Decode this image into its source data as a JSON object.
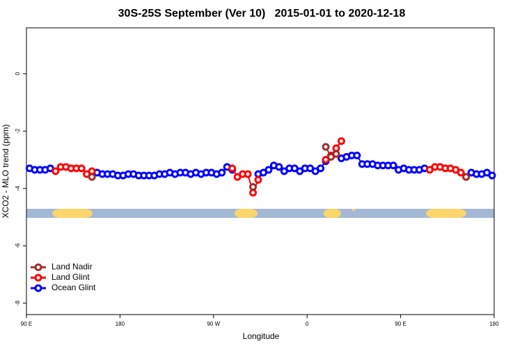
{
  "chart_data": {
    "type": "line",
    "title": "30S-25S September (Ver 10)   2015-01-01 to 2020-12-18",
    "x_label": "Longitude",
    "y_label": "XCO2 - MLO trend (ppm)",
    "xlim": [
      90,
      540
    ],
    "xticks": [
      {
        "value": 90,
        "label": "90 E"
      },
      180,
      {
        "value": 270,
        "label": "90 W"
      },
      {
        "value": 360,
        "label": "0"
      },
      {
        "value": 450,
        "label": "90 E"
      },
      {
        "value": 540,
        "label": "180"
      }
    ],
    "ylim": [
      -8.4,
      1.6
    ],
    "yticks": [
      0,
      -2,
      -4,
      -6,
      -8
    ],
    "legend": "bottom-left",
    "x": [
      93,
      98,
      103,
      108,
      113,
      118,
      123,
      128,
      133,
      138,
      143,
      148,
      153,
      158,
      163,
      168,
      173,
      178,
      183,
      188,
      193,
      198,
      203,
      208,
      213,
      218,
      223,
      228,
      233,
      238,
      243,
      248,
      253,
      258,
      263,
      268,
      273,
      278,
      283,
      288,
      293,
      298,
      303,
      308,
      313,
      318,
      323,
      328,
      333,
      338,
      343,
      348,
      353,
      358,
      363,
      368,
      373,
      378,
      383,
      388,
      393,
      398,
      403,
      408,
      413,
      418,
      423,
      428,
      433,
      438,
      443,
      448,
      453,
      458,
      463,
      468,
      473,
      478,
      483,
      488,
      493,
      498,
      503,
      508,
      513,
      518,
      523,
      528,
      533,
      538
    ],
    "series": [
      {
        "name": "Land Nadir",
        "color": "#a52a2a",
        "values": [
          null,
          null,
          null,
          null,
          null,
          null,
          null,
          null,
          null,
          null,
          null,
          null,
          -3.6,
          null,
          null,
          null,
          null,
          null,
          null,
          null,
          null,
          null,
          null,
          null,
          null,
          null,
          null,
          null,
          null,
          null,
          null,
          null,
          null,
          null,
          null,
          null,
          null,
          null,
          null,
          null,
          null,
          null,
          null,
          -3.95,
          null,
          null,
          null,
          null,
          null,
          null,
          null,
          null,
          null,
          null,
          null,
          null,
          null,
          -2.55,
          -2.9,
          -2.8,
          null,
          null,
          null,
          null,
          null,
          null,
          null,
          null,
          null,
          null,
          null,
          null,
          null,
          null,
          null,
          null,
          null,
          null,
          null,
          null,
          null,
          null,
          null,
          null,
          -3.6,
          null,
          null,
          null,
          null,
          null
        ]
      },
      {
        "name": "Land Glint",
        "color": "#ff0000",
        "values": [
          null,
          null,
          null,
          null,
          null,
          -3.4,
          -3.25,
          -3.25,
          -3.3,
          -3.3,
          -3.3,
          -3.5,
          -3.4,
          null,
          null,
          null,
          null,
          null,
          null,
          null,
          null,
          null,
          null,
          null,
          null,
          null,
          null,
          null,
          null,
          null,
          null,
          null,
          null,
          null,
          null,
          null,
          null,
          null,
          null,
          -3.3,
          -3.6,
          -3.5,
          -3.5,
          -4.15,
          -3.7,
          null,
          null,
          null,
          null,
          null,
          null,
          null,
          null,
          null,
          null,
          null,
          null,
          -3.0,
          -2.85,
          -2.6,
          -2.35,
          null,
          null,
          null,
          null,
          null,
          null,
          null,
          null,
          null,
          null,
          null,
          null,
          null,
          null,
          null,
          null,
          -3.35,
          -3.25,
          -3.25,
          -3.3,
          -3.3,
          -3.35,
          -3.45,
          -3.6,
          null,
          null,
          null,
          null,
          null
        ]
      },
      {
        "name": "Ocean Glint",
        "color": "#0000ff",
        "values": [
          -3.3,
          -3.35,
          -3.35,
          -3.35,
          -3.3,
          null,
          null,
          null,
          null,
          null,
          null,
          null,
          -3.5,
          -3.45,
          -3.5,
          -3.5,
          -3.5,
          -3.55,
          -3.55,
          -3.5,
          -3.5,
          -3.55,
          -3.55,
          -3.55,
          -3.55,
          -3.5,
          -3.5,
          -3.45,
          -3.5,
          -3.45,
          -3.45,
          -3.5,
          -3.45,
          -3.5,
          -3.45,
          -3.45,
          -3.5,
          -3.45,
          -3.25,
          -3.35,
          null,
          null,
          null,
          null,
          -3.5,
          -3.45,
          -3.35,
          -3.2,
          -3.25,
          -3.4,
          -3.3,
          -3.3,
          -3.4,
          -3.3,
          -3.3,
          -3.4,
          -3.3,
          -3.05,
          null,
          null,
          -2.95,
          -2.9,
          -2.85,
          -2.85,
          -3.15,
          -3.15,
          -3.15,
          -3.2,
          -3.2,
          -3.2,
          -3.2,
          -3.35,
          -3.3,
          -3.35,
          -3.35,
          -3.35,
          -3.3,
          null,
          null,
          null,
          null,
          null,
          null,
          null,
          null,
          -3.45,
          -3.5,
          -3.5,
          -3.45,
          -3.55
        ]
      }
    ]
  }
}
